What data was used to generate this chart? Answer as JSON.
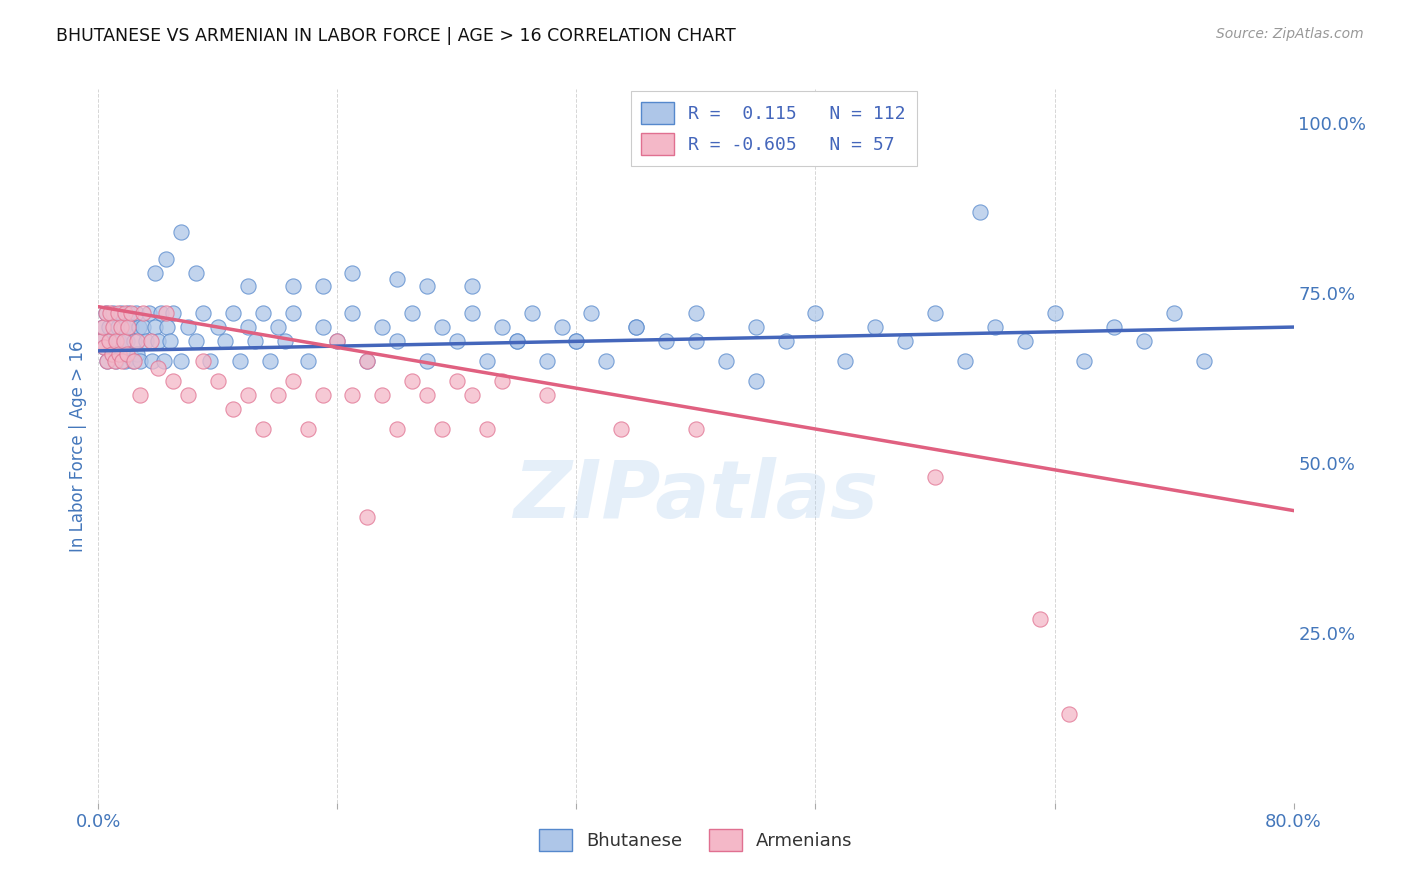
{
  "title": "BHUTANESE VS ARMENIAN IN LABOR FORCE | AGE > 16 CORRELATION CHART",
  "source": "Source: ZipAtlas.com",
  "ylabel": "In Labor Force | Age > 16",
  "xlim": [
    0.0,
    0.8
  ],
  "ylim": [
    0.0,
    1.05
  ],
  "x_ticks": [
    0.0,
    0.16,
    0.32,
    0.48,
    0.64,
    0.8
  ],
  "x_tick_labels": [
    "0.0%",
    "",
    "",
    "",
    "",
    "80.0%"
  ],
  "y_ticks_right": [
    0.0,
    0.25,
    0.5,
    0.75,
    1.0
  ],
  "y_tick_labels_right": [
    "",
    "25.0%",
    "50.0%",
    "75.0%",
    "100.0%"
  ],
  "watermark": "ZIPatlas",
  "legend_R_blue": " 0.115",
  "legend_N_blue": "112",
  "legend_R_pink": "-0.605",
  "legend_N_pink": "57",
  "blue_fill": "#aec6e8",
  "pink_fill": "#f4b8c8",
  "blue_edge": "#5588cc",
  "pink_edge": "#e07090",
  "line_blue": "#4466bb",
  "line_pink": "#e06080",
  "blue_line_x": [
    0.0,
    0.8
  ],
  "blue_line_y": [
    0.665,
    0.7
  ],
  "pink_line_x": [
    0.0,
    0.8
  ],
  "pink_line_y": [
    0.73,
    0.43
  ],
  "blue_scatter_x": [
    0.002,
    0.003,
    0.004,
    0.005,
    0.006,
    0.007,
    0.008,
    0.009,
    0.01,
    0.011,
    0.012,
    0.013,
    0.014,
    0.015,
    0.016,
    0.017,
    0.018,
    0.019,
    0.02,
    0.021,
    0.022,
    0.023,
    0.024,
    0.025,
    0.026,
    0.027,
    0.028,
    0.03,
    0.032,
    0.034,
    0.036,
    0.038,
    0.04,
    0.042,
    0.044,
    0.046,
    0.048,
    0.05,
    0.055,
    0.06,
    0.065,
    0.07,
    0.075,
    0.08,
    0.085,
    0.09,
    0.095,
    0.1,
    0.105,
    0.11,
    0.115,
    0.12,
    0.125,
    0.13,
    0.14,
    0.15,
    0.16,
    0.17,
    0.18,
    0.19,
    0.2,
    0.21,
    0.22,
    0.23,
    0.24,
    0.25,
    0.26,
    0.27,
    0.28,
    0.29,
    0.3,
    0.31,
    0.32,
    0.33,
    0.34,
    0.36,
    0.38,
    0.4,
    0.42,
    0.44,
    0.46,
    0.48,
    0.5,
    0.52,
    0.54,
    0.56,
    0.58,
    0.6,
    0.62,
    0.64,
    0.66,
    0.68,
    0.7,
    0.72,
    0.74,
    0.038,
    0.045,
    0.055,
    0.065,
    0.1,
    0.13,
    0.15,
    0.17,
    0.2,
    0.22,
    0.25,
    0.28,
    0.32,
    0.36,
    0.4,
    0.44,
    0.59
  ],
  "blue_scatter_y": [
    0.68,
    0.7,
    0.67,
    0.72,
    0.65,
    0.7,
    0.68,
    0.66,
    0.72,
    0.68,
    0.65,
    0.7,
    0.68,
    0.72,
    0.66,
    0.7,
    0.65,
    0.68,
    0.72,
    0.66,
    0.7,
    0.65,
    0.68,
    0.72,
    0.66,
    0.7,
    0.65,
    0.7,
    0.68,
    0.72,
    0.65,
    0.7,
    0.68,
    0.72,
    0.65,
    0.7,
    0.68,
    0.72,
    0.65,
    0.7,
    0.68,
    0.72,
    0.65,
    0.7,
    0.68,
    0.72,
    0.65,
    0.7,
    0.68,
    0.72,
    0.65,
    0.7,
    0.68,
    0.72,
    0.65,
    0.7,
    0.68,
    0.72,
    0.65,
    0.7,
    0.68,
    0.72,
    0.65,
    0.7,
    0.68,
    0.72,
    0.65,
    0.7,
    0.68,
    0.72,
    0.65,
    0.7,
    0.68,
    0.72,
    0.65,
    0.7,
    0.68,
    0.72,
    0.65,
    0.7,
    0.68,
    0.72,
    0.65,
    0.7,
    0.68,
    0.72,
    0.65,
    0.7,
    0.68,
    0.72,
    0.65,
    0.7,
    0.68,
    0.72,
    0.65,
    0.78,
    0.8,
    0.84,
    0.78,
    0.76,
    0.76,
    0.76,
    0.78,
    0.77,
    0.76,
    0.76,
    0.68,
    0.68,
    0.7,
    0.68,
    0.62,
    0.87
  ],
  "pink_scatter_x": [
    0.002,
    0.003,
    0.004,
    0.005,
    0.006,
    0.007,
    0.008,
    0.009,
    0.01,
    0.011,
    0.012,
    0.013,
    0.014,
    0.015,
    0.016,
    0.017,
    0.018,
    0.019,
    0.02,
    0.022,
    0.024,
    0.026,
    0.028,
    0.03,
    0.035,
    0.04,
    0.045,
    0.05,
    0.06,
    0.07,
    0.08,
    0.09,
    0.1,
    0.11,
    0.12,
    0.13,
    0.14,
    0.15,
    0.16,
    0.17,
    0.18,
    0.19,
    0.2,
    0.21,
    0.22,
    0.23,
    0.24,
    0.25,
    0.26,
    0.27,
    0.3,
    0.35,
    0.4,
    0.18,
    0.56,
    0.63,
    0.65
  ],
  "pink_scatter_y": [
    0.68,
    0.7,
    0.67,
    0.72,
    0.65,
    0.68,
    0.72,
    0.66,
    0.7,
    0.65,
    0.68,
    0.72,
    0.66,
    0.7,
    0.65,
    0.68,
    0.72,
    0.66,
    0.7,
    0.72,
    0.65,
    0.68,
    0.6,
    0.72,
    0.68,
    0.64,
    0.72,
    0.62,
    0.6,
    0.65,
    0.62,
    0.58,
    0.6,
    0.55,
    0.6,
    0.62,
    0.55,
    0.6,
    0.68,
    0.6,
    0.65,
    0.6,
    0.55,
    0.62,
    0.6,
    0.55,
    0.62,
    0.6,
    0.55,
    0.62,
    0.6,
    0.55,
    0.55,
    0.42,
    0.48,
    0.27,
    0.13
  ],
  "background_color": "#ffffff",
  "grid_color": "#cccccc",
  "title_color": "#111111",
  "axis_label_color": "#4477BB",
  "tick_color": "#4477BB"
}
